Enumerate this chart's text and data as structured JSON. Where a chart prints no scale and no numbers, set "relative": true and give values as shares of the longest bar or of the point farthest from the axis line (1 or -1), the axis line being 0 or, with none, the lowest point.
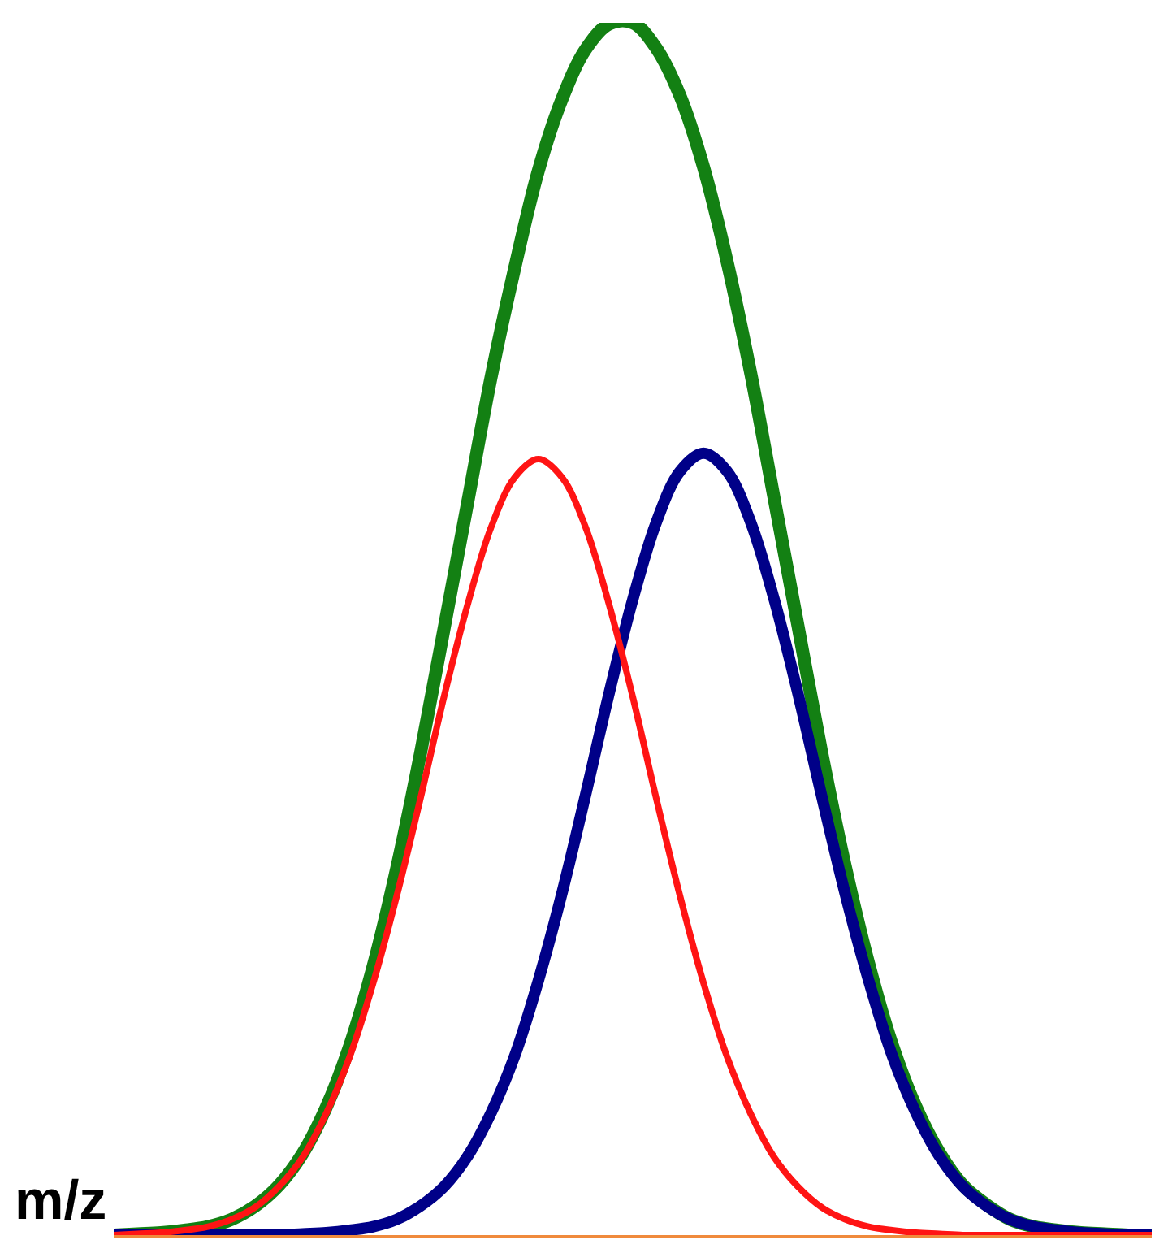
{
  "chart_data": {
    "type": "line",
    "relative": true,
    "xlabel": "m/z",
    "marker": "none",
    "line_style": "solid",
    "categories": [
      null,
      null,
      null,
      null,
      null,
      null,
      null,
      null,
      null,
      null,
      null,
      null,
      null,
      null,
      null,
      null,
      null,
      null,
      null,
      null,
      null,
      null,
      null,
      null,
      null,
      null,
      null,
      null,
      null,
      null,
      null,
      null,
      null,
      null,
      null,
      null,
      null,
      null,
      null,
      null,
      null,
      null,
      null,
      null,
      null
    ],
    "series": [
      {
        "color": "#138013",
        "values": [
          0,
          0.001,
          0.002,
          0.004,
          0.007,
          0.013,
          0.024,
          0.041,
          0.067,
          0.105,
          0.156,
          0.222,
          0.303,
          0.397,
          0.5,
          0.604,
          0.708,
          0.798,
          0.878,
          0.937,
          0.978,
          0.999,
          1.0,
          0.979,
          0.94,
          0.881,
          0.803,
          0.711,
          0.607,
          0.503,
          0.399,
          0.305,
          0.224,
          0.157,
          0.106,
          0.068,
          0.041,
          0.025,
          0.013,
          0.007,
          0.004,
          0.002,
          0.001,
          0,
          0
        ]
      },
      {
        "color": "#ff1414",
        "values": [
          0,
          0.001,
          0.002,
          0.004,
          0.007,
          0.013,
          0.023,
          0.04,
          0.064,
          0.1,
          0.147,
          0.208,
          0.28,
          0.36,
          0.444,
          0.52,
          0.584,
          0.625,
          0.64,
          0.625,
          0.584,
          0.52,
          0.444,
          0.36,
          0.28,
          0.208,
          0.147,
          0.1,
          0.064,
          0.04,
          0.023,
          0.013,
          0.007,
          0.004,
          0.002,
          0.001,
          0,
          0,
          0,
          0,
          0,
          0,
          0,
          0,
          0
        ]
      },
      {
        "color": "#000088",
        "values": [
          0,
          0,
          0,
          0,
          0,
          0,
          0,
          0,
          0.001,
          0.002,
          0.004,
          0.007,
          0.013,
          0.024,
          0.04,
          0.065,
          0.101,
          0.148,
          0.21,
          0.282,
          0.363,
          0.447,
          0.524,
          0.588,
          0.63,
          0.645,
          0.63,
          0.588,
          0.524,
          0.447,
          0.363,
          0.282,
          0.21,
          0.148,
          0.101,
          0.065,
          0.04,
          0.024,
          0.013,
          0.007,
          0.004,
          0.002,
          0.001,
          0,
          0
        ]
      }
    ]
  }
}
